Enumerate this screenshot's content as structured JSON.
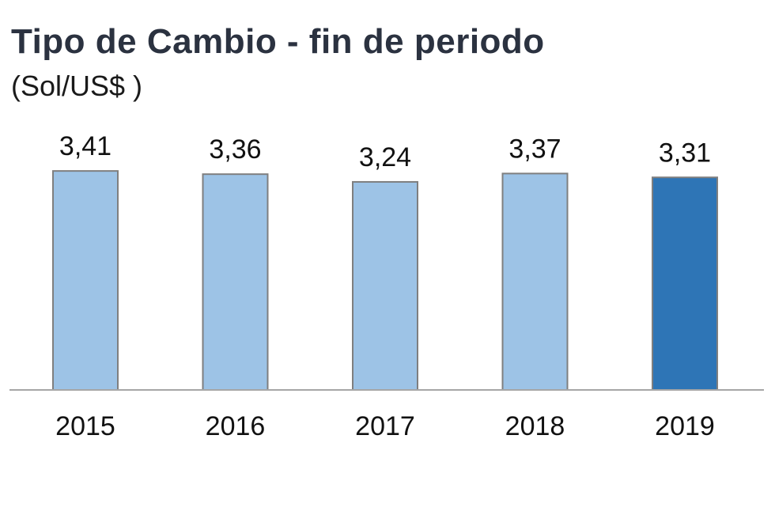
{
  "chart_data": {
    "type": "bar",
    "title": "Tipo de Cambio - fin de periodo",
    "subtitle": "(Sol/US$ )",
    "categories": [
      "2015",
      "2016",
      "2017",
      "2018",
      "2019"
    ],
    "values": [
      3.41,
      3.36,
      3.24,
      3.37,
      3.31
    ],
    "data_labels": [
      "3,41",
      "3,36",
      "3,24",
      "3,37",
      "3,31"
    ],
    "xlabel": "",
    "ylabel": "",
    "ylim": [
      0,
      4.2
    ],
    "grid": false,
    "colors": {
      "bar": "#9dc3e6",
      "highlight_bar": "#2e75b6",
      "bar_border": "#7f7f7f",
      "baseline": "#a6a6a6"
    },
    "highlight_index": 4
  }
}
